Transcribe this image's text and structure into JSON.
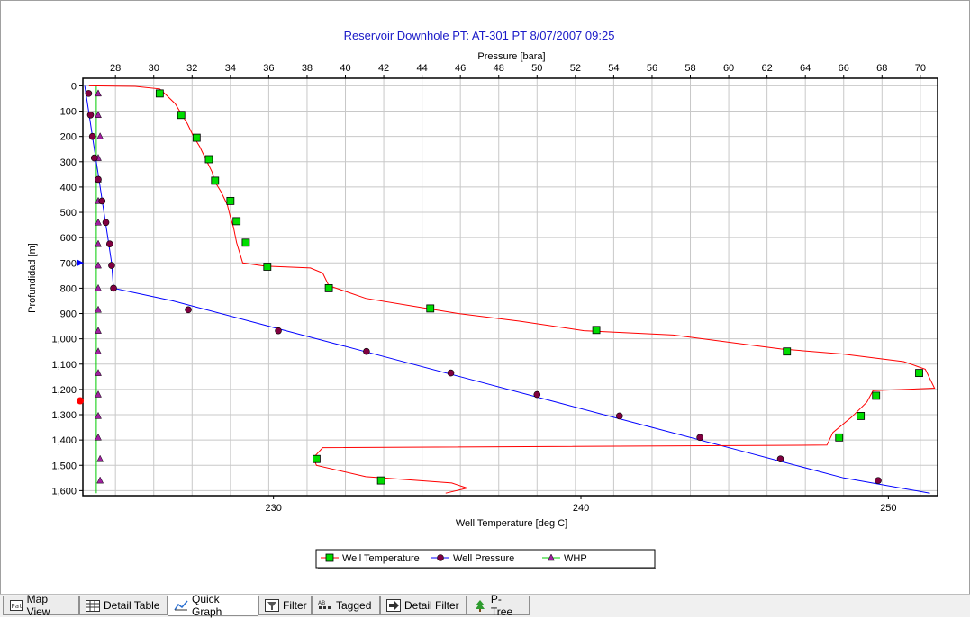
{
  "chart_data": {
    "type": "line",
    "title": "Reservoir Downhole PT:    AT-301 PT 8/07/2007 09:25",
    "ylabel": "Profundidad [m]",
    "ylim": [
      -30,
      1620
    ],
    "yticks": [
      0,
      100,
      200,
      300,
      400,
      500,
      600,
      700,
      800,
      900,
      1000,
      1100,
      1200,
      1300,
      1400,
      1500,
      1600
    ],
    "ytick_labels": [
      "0",
      "100",
      "200",
      "300",
      "400",
      "500",
      "600",
      "700",
      "800",
      "900",
      "1,000",
      "1,100",
      "1,200",
      "1,300",
      "1,400",
      "1,500",
      "1,600"
    ],
    "x_top": {
      "label": "Pressure [bara]",
      "lim": [
        26.3,
        70.9
      ],
      "ticks": [
        28,
        30,
        32,
        34,
        36,
        38,
        40,
        42,
        44,
        46,
        48,
        50,
        52,
        54,
        56,
        58,
        60,
        62,
        64,
        66,
        68,
        70
      ]
    },
    "x_bottom": {
      "label": "Well Temperature [deg C]",
      "lim": [
        223.8,
        251.6
      ],
      "ticks": [
        230,
        240,
        250
      ]
    },
    "grid": true,
    "legend_position": "bottom-center",
    "series": [
      {
        "name": "Well Temperature",
        "axis": "bottom",
        "color": "#ff0000",
        "marker": "square",
        "marker_color": "#00dd00",
        "line": [
          [
            224.0,
            0
          ],
          [
            225.5,
            2
          ],
          [
            226.3,
            12
          ],
          [
            226.5,
            35
          ],
          [
            226.8,
            70
          ],
          [
            227.0,
            110
          ],
          [
            227.2,
            150
          ],
          [
            227.4,
            200
          ],
          [
            227.6,
            240
          ],
          [
            227.8,
            290
          ],
          [
            228.0,
            340
          ],
          [
            228.1,
            380
          ],
          [
            228.3,
            420
          ],
          [
            228.5,
            470
          ],
          [
            228.6,
            520
          ],
          [
            228.7,
            560
          ],
          [
            228.8,
            620
          ],
          [
            228.9,
            660
          ],
          [
            229.0,
            700
          ],
          [
            229.7,
            712
          ],
          [
            231.2,
            720
          ],
          [
            231.6,
            740
          ],
          [
            231.8,
            790
          ],
          [
            233.0,
            840
          ],
          [
            234.5,
            870
          ],
          [
            236.0,
            900
          ],
          [
            238.0,
            930
          ],
          [
            240.1,
            968
          ],
          [
            243.0,
            985
          ],
          [
            246.5,
            1040
          ],
          [
            248.5,
            1060
          ],
          [
            250.5,
            1090
          ],
          [
            251.2,
            1120
          ],
          [
            251.5,
            1195
          ],
          [
            249.5,
            1205
          ],
          [
            249.3,
            1250
          ],
          [
            248.8,
            1310
          ],
          [
            248.2,
            1370
          ],
          [
            248.0,
            1420
          ],
          [
            231.6,
            1430
          ],
          [
            231.3,
            1470
          ],
          [
            231.4,
            1500
          ],
          [
            233.0,
            1545
          ],
          [
            235.8,
            1570
          ],
          [
            236.3,
            1590
          ],
          [
            235.6,
            1610
          ]
        ],
        "markers": [
          [
            226.3,
            30
          ],
          [
            227.0,
            115
          ],
          [
            227.5,
            205
          ],
          [
            227.9,
            290
          ],
          [
            228.1,
            375
          ],
          [
            228.6,
            455
          ],
          [
            228.8,
            535
          ],
          [
            229.1,
            620
          ],
          [
            229.8,
            715
          ],
          [
            231.8,
            800
          ],
          [
            235.1,
            880
          ],
          [
            240.5,
            965
          ],
          [
            246.7,
            1050
          ],
          [
            251.0,
            1135
          ],
          [
            249.6,
            1225
          ],
          [
            249.1,
            1305
          ],
          [
            248.4,
            1390
          ],
          [
            231.4,
            1475
          ],
          [
            233.5,
            1560
          ]
        ]
      },
      {
        "name": "Well Pressure",
        "axis": "top",
        "color": "#0000ff",
        "marker": "circle",
        "marker_color": "#800040",
        "line": [
          [
            26.4,
            0
          ],
          [
            26.6,
            100
          ],
          [
            26.8,
            200
          ],
          [
            27.0,
            300
          ],
          [
            27.2,
            400
          ],
          [
            27.4,
            500
          ],
          [
            27.6,
            600
          ],
          [
            27.8,
            700
          ],
          [
            27.9,
            800
          ],
          [
            31.0,
            850
          ],
          [
            36.0,
            950
          ],
          [
            41.0,
            1050
          ],
          [
            46.0,
            1150
          ],
          [
            51.0,
            1250
          ],
          [
            56.0,
            1350
          ],
          [
            61.0,
            1450
          ],
          [
            66.0,
            1550
          ],
          [
            70.5,
            1610
          ]
        ],
        "markers": [
          [
            26.6,
            30
          ],
          [
            26.7,
            115
          ],
          [
            26.8,
            200
          ],
          [
            26.9,
            285
          ],
          [
            27.1,
            370
          ],
          [
            27.3,
            455
          ],
          [
            27.5,
            540
          ],
          [
            27.7,
            625
          ],
          [
            27.8,
            710
          ],
          [
            27.9,
            800
          ],
          [
            31.8,
            885
          ],
          [
            36.5,
            968
          ],
          [
            41.1,
            1050
          ],
          [
            45.5,
            1135
          ],
          [
            50.0,
            1220
          ],
          [
            54.3,
            1305
          ],
          [
            58.5,
            1390
          ],
          [
            62.7,
            1475
          ],
          [
            67.8,
            1560
          ]
        ]
      },
      {
        "name": "WHP",
        "axis": "top",
        "color": "#00cc00",
        "marker": "triangle",
        "marker_color": "#a020a0",
        "line": [
          [
            27.0,
            0
          ],
          [
            27.0,
            1610
          ]
        ],
        "markers": [
          [
            27.1,
            30
          ],
          [
            27.1,
            115
          ],
          [
            27.2,
            200
          ],
          [
            27.1,
            285
          ],
          [
            27.1,
            370
          ],
          [
            27.1,
            455
          ],
          [
            27.1,
            540
          ],
          [
            27.1,
            625
          ],
          [
            27.1,
            710
          ],
          [
            27.1,
            800
          ],
          [
            27.1,
            885
          ],
          [
            27.1,
            968
          ],
          [
            27.1,
            1050
          ],
          [
            27.1,
            1135
          ],
          [
            27.1,
            1220
          ],
          [
            27.1,
            1305
          ],
          [
            27.1,
            1390
          ],
          [
            27.2,
            1475
          ],
          [
            27.2,
            1560
          ]
        ]
      }
    ],
    "axis_markers": [
      {
        "shape": "triangle",
        "color": "#0000ff",
        "y": 700
      },
      {
        "shape": "circle",
        "color": "#ff0000",
        "y": 1245
      }
    ]
  },
  "tabs": [
    {
      "label": "Map View",
      "icon": "map-view-icon",
      "active": false
    },
    {
      "label": "Detail Table",
      "icon": "table-icon",
      "active": false
    },
    {
      "label": "Quick Graph",
      "icon": "graph-icon",
      "active": true
    },
    {
      "label": "Filter",
      "icon": "filter-icon",
      "active": false
    },
    {
      "label": "Tagged",
      "icon": "tag-icon",
      "active": false
    },
    {
      "label": "Detail Filter",
      "icon": "detail-filter-icon",
      "active": false
    },
    {
      "label": "P-Tree",
      "icon": "tree-icon",
      "active": false
    }
  ]
}
